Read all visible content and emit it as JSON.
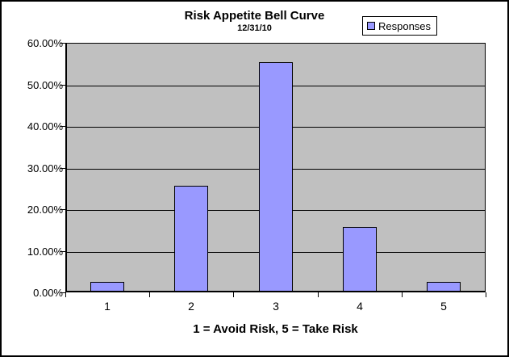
{
  "chart": {
    "title": "Risk Appetite Bell Curve",
    "subtitle": "12/31/10",
    "x_axis_title": "1 = Avoid Risk, 5 = Take Risk",
    "legend": {
      "label": "Responses"
    },
    "colors": {
      "bar_fill": "#9999FF",
      "bar_border": "#000000",
      "plot_background": "#C0C0C0",
      "gridline": "#000000",
      "chart_border": "#000000",
      "text": "#000000",
      "background": "#FFFFFF"
    }
  },
  "chart_data": {
    "type": "bar",
    "title": "Risk Appetite Bell Curve",
    "subtitle": "12/31/10",
    "categories": [
      "1",
      "2",
      "3",
      "4",
      "5"
    ],
    "series": [
      {
        "name": "Responses",
        "values": [
          2.2,
          25.3,
          54.9,
          15.4,
          2.2
        ]
      }
    ],
    "values_format": "percent",
    "xlabel": "1 = Avoid Risk, 5 = Take Risk",
    "ylabel": "",
    "ylim": [
      0,
      60
    ],
    "ytick_values": [
      0,
      10,
      20,
      30,
      40,
      50,
      60
    ],
    "ytick_labels": [
      "0.00%",
      "10.00%",
      "20.00%",
      "30.00%",
      "40.00%",
      "50.00%",
      "60.00%"
    ],
    "grid": true,
    "legend_position": "top-right",
    "plot_area_background": "#C0C0C0",
    "bar_color": "#9999FF"
  }
}
